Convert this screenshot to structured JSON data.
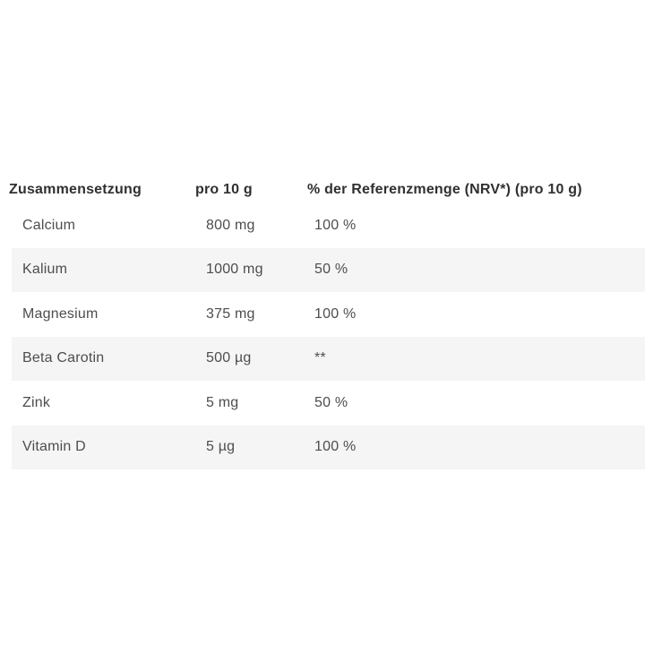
{
  "table": {
    "headers": {
      "composition": "Zusammensetzung",
      "amount": "pro 10 g",
      "nrv": "% der Referenzmenge (NRV*) (pro 10 g)"
    },
    "rows": [
      {
        "name": "Calcium",
        "amount": "800 mg",
        "nrv": "100 %"
      },
      {
        "name": "Kalium",
        "amount": "1000 mg",
        "nrv": "50 %"
      },
      {
        "name": "Magnesium",
        "amount": "375 mg",
        "nrv": "100 %"
      },
      {
        "name": "Beta Carotin",
        "amount": "500 µg",
        "nrv": "**"
      },
      {
        "name": "Zink",
        "amount": "5 mg",
        "nrv": "50 %"
      },
      {
        "name": "Vitamin D",
        "amount": "5 µg",
        "nrv": "100 %"
      }
    ],
    "colors": {
      "stripe_background": "#f5f5f5",
      "header_text": "#303030",
      "body_text": "#4d4d4d",
      "page_background": "#ffffff"
    }
  }
}
